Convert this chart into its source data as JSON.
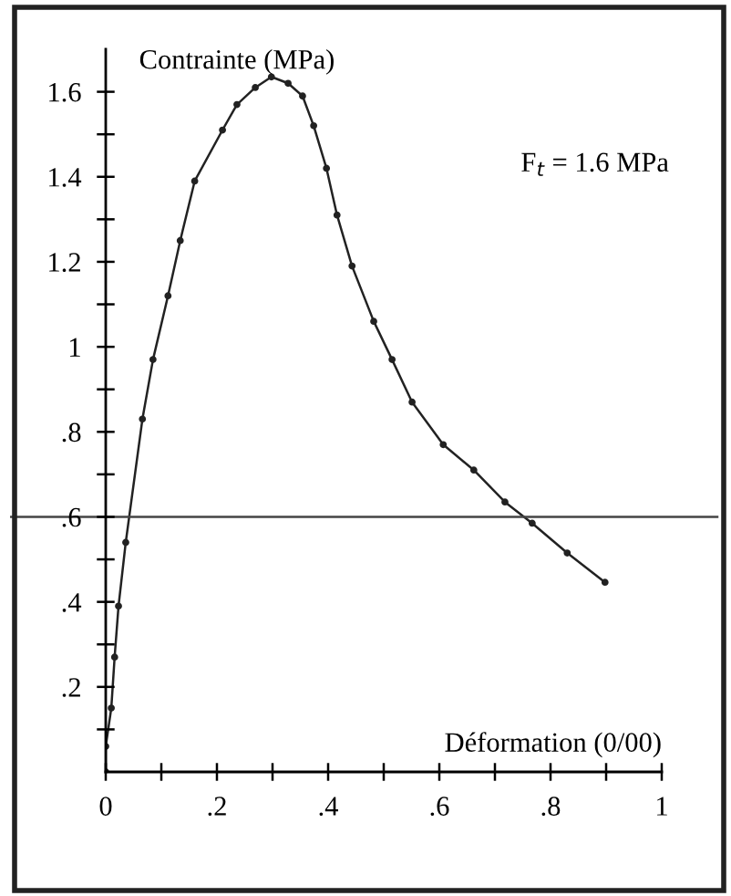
{
  "chart_data": {
    "type": "line",
    "xlabel": "Déformation (0/00)",
    "ylabel": "Contrainte (MPa)",
    "annotations": [
      "F$_{t}$ = 1.6 MPa"
    ],
    "xlim": [
      0,
      1
    ],
    "ylim": [
      0,
      1.7
    ],
    "xticks": [
      0,
      {
        "value": 0.1,
        "label": null
      },
      {
        "value": 0.2,
        "label": ".2"
      },
      {
        "value": 0.3,
        "label": null
      },
      {
        "value": 0.4,
        "label": ".4"
      },
      {
        "value": 0.5,
        "label": null
      },
      {
        "value": 0.6,
        "label": ".6"
      },
      {
        "value": 0.7,
        "label": null
      },
      {
        "value": 0.8,
        "label": ".8"
      },
      {
        "value": 0.9,
        "label": null
      },
      1
    ],
    "yticks": [
      {
        "value": 0.1,
        "label": null
      },
      {
        "value": 0.2,
        "label": ".2"
      },
      {
        "value": 0.3,
        "label": null
      },
      {
        "value": 0.4,
        "label": ".4"
      },
      {
        "value": 0.5,
        "label": null
      },
      {
        "value": 0.6,
        "label": ".6"
      },
      {
        "value": 0.7,
        "label": null
      },
      {
        "value": 0.8,
        "label": ".8"
      },
      {
        "value": 0.9,
        "label": null
      },
      1,
      {
        "value": 1.1,
        "label": null
      },
      1.2,
      {
        "value": 1.3,
        "label": null
      },
      1.4,
      {
        "value": 1.5,
        "label": null
      },
      1.6
    ],
    "ref_lines": [
      {
        "axis": "y",
        "value": 0.6,
        "color": "#444444"
      }
    ],
    "grid": false,
    "legend": false,
    "marker": "circle",
    "line_style": "solid",
    "series": [
      {
        "color": "#222222",
        "x": [
          0,
          0.0,
          0.01,
          0.016,
          0.023,
          0.036,
          0.066,
          0.085,
          0.112,
          0.134,
          0.16,
          0.21,
          0.236,
          0.269,
          0.298,
          0.328,
          0.354,
          0.374,
          0.397,
          0.416,
          0.443,
          0.482,
          0.515,
          0.551,
          0.607,
          0.662,
          0.718,
          0.767,
          0.83,
          0.898
        ],
        "values": [
          0,
          0.06,
          0.15,
          0.27,
          0.39,
          0.54,
          0.83,
          0.97,
          1.12,
          1.25,
          1.39,
          1.51,
          1.57,
          1.61,
          1.635,
          1.62,
          1.59,
          1.52,
          1.42,
          1.31,
          1.19,
          1.06,
          0.97,
          0.87,
          0.77,
          0.71,
          0.635,
          0.585,
          0.515,
          0.446
        ]
      }
    ]
  }
}
